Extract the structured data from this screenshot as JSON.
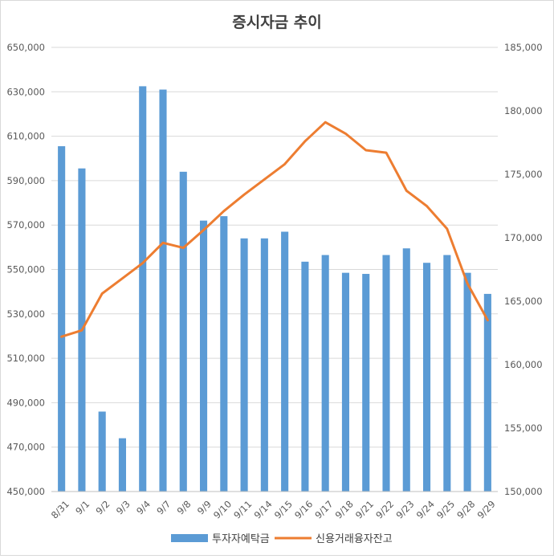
{
  "chart_data": {
    "type": "bar+line",
    "title": "증시자금 추이",
    "categories": [
      "8/31",
      "9/1",
      "9/2",
      "9/3",
      "9/4",
      "9/7",
      "9/8",
      "9/9",
      "9/10",
      "9/11",
      "9/14",
      "9/15",
      "9/16",
      "9/17",
      "9/18",
      "9/21",
      "9/22",
      "9/23",
      "9/24",
      "9/25",
      "9/28",
      "9/29"
    ],
    "left_axis": {
      "min": 450000,
      "max": 650000,
      "ticks": [
        "450,000",
        "470,000",
        "490,000",
        "510,000",
        "530,000",
        "550,000",
        "570,000",
        "590,000",
        "610,000",
        "630,000",
        "650,000"
      ]
    },
    "right_axis": {
      "min": 150000,
      "max": 185000,
      "ticks": [
        "150,000",
        "155,000",
        "160,000",
        "165,000",
        "170,000",
        "175,000",
        "180,000",
        "185,000"
      ]
    },
    "series": [
      {
        "name": "투자자예탁금",
        "type": "bar",
        "axis": "left",
        "color": "#5B9BD5",
        "values": [
          605500,
          595500,
          486000,
          474000,
          632500,
          631000,
          594000,
          572000,
          574000,
          564000,
          564000,
          567000,
          553500,
          556500,
          548500,
          548000,
          556500,
          559500,
          553000,
          556500,
          548500,
          539000
        ]
      },
      {
        "name": "신용거래융자잔고",
        "type": "line",
        "axis": "right",
        "color": "#ED7D31",
        "values": [
          162200,
          162700,
          165600,
          166800,
          168000,
          169600,
          169200,
          170600,
          172100,
          173400,
          174600,
          175800,
          177600,
          179100,
          178200,
          176900,
          176700,
          173700,
          172500,
          170700,
          166400,
          163500
        ]
      }
    ],
    "legend_position": "bottom",
    "grid": true
  }
}
